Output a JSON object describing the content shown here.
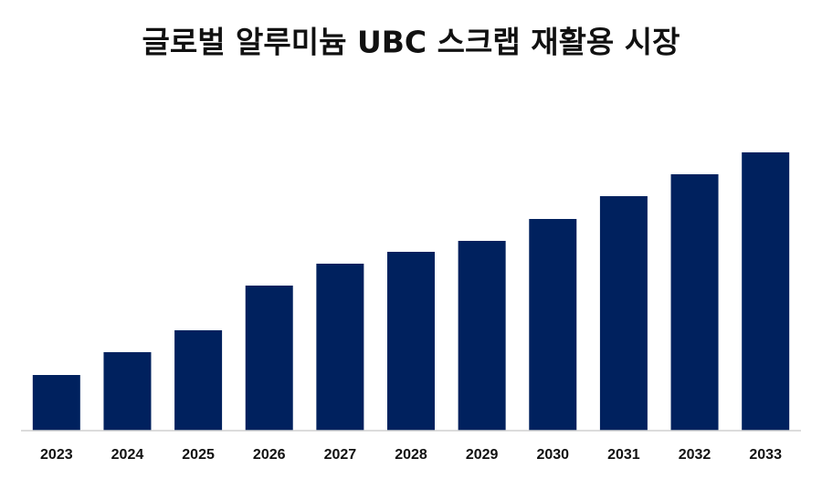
{
  "chart_data": {
    "type": "bar",
    "title": "글로벌 알루미늄 UBC 스크랩 재활용 시장",
    "categories": [
      "2023",
      "2024",
      "2025",
      "2026",
      "2027",
      "2028",
      "2029",
      "2030",
      "2031",
      "2032",
      "2033"
    ],
    "values": [
      61,
      86,
      110,
      159,
      183,
      196,
      208,
      232,
      257,
      281,
      305
    ],
    "color": "#00215e",
    "ylim": [
      0,
      305
    ]
  }
}
